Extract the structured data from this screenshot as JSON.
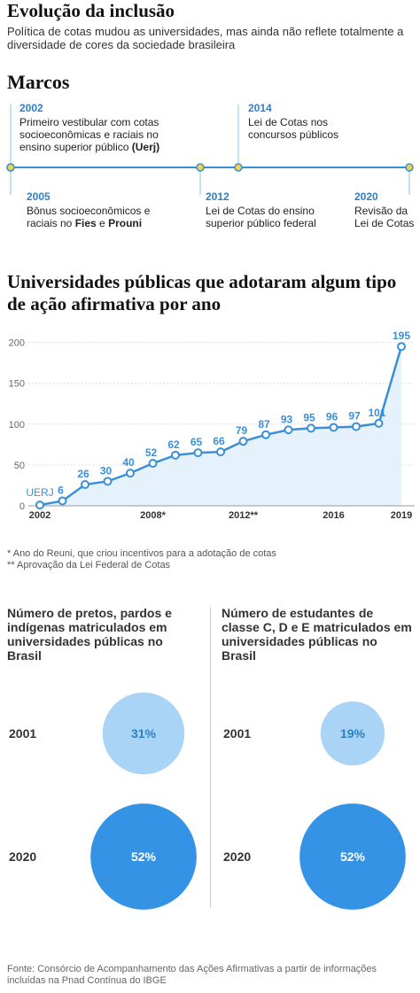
{
  "header": {
    "title": "Evolução da inclusão",
    "subtitle": "Política de cotas mudou  as universidades, mas ainda não reflete totalmente a diversidade de cores da sociedade brasileira"
  },
  "timeline": {
    "title": "Marcos",
    "events": [
      {
        "year": "2002",
        "position": "top",
        "parts": [
          {
            "text": "Primeiro vestibular com cotas socioeconômicas e raciais no ensino superior público ",
            "bold": false
          },
          {
            "text": "(Uerj)",
            "bold": true
          }
        ]
      },
      {
        "year": "2005",
        "position": "bottom",
        "parts": [
          {
            "text": "Bônus socioeconômicos e raciais no ",
            "bold": false
          },
          {
            "text": "Fies",
            "bold": true
          },
          {
            "text": " e ",
            "bold": false
          },
          {
            "text": "Prouni",
            "bold": true
          }
        ]
      },
      {
        "year": "2012",
        "position": "bottom",
        "parts": [
          {
            "text": "Lei de Cotas do ensino superior público federal",
            "bold": false
          }
        ]
      },
      {
        "year": "2014",
        "position": "top",
        "parts": [
          {
            "text": "Lei de Cotas nos concursos públicos",
            "bold": false
          }
        ]
      },
      {
        "year": "2020",
        "position": "bottom",
        "parts": [
          {
            "text": "Revisão da Lei de Cotas",
            "bold": false
          }
        ]
      }
    ]
  },
  "chart_data": {
    "type": "line",
    "title": "Universidades públicas que adotaram algum tipo de ação afirmativa por ano",
    "categories": [
      "2002",
      null,
      null,
      null,
      null,
      "2008*",
      null,
      null,
      null,
      "2012**",
      null,
      null,
      null,
      "2016",
      null,
      null,
      "2019"
    ],
    "values": [
      1,
      6,
      26,
      30,
      40,
      52,
      62,
      65,
      66,
      79,
      87,
      93,
      95,
      96,
      97,
      101,
      195
    ],
    "annotations": [
      {
        "text": "UERJ",
        "index": 0
      }
    ],
    "color": "#3a8fd6",
    "area_color": "#e6f2fb",
    "ylim": [
      0,
      205
    ],
    "yticks": [
      0,
      50,
      100,
      150,
      200
    ],
    "grid": true,
    "notes": [
      "* Ano do Reuni, que criou incentivos para a adotação de cotas",
      "** Aprovação da Lei Federal de Cotas"
    ]
  },
  "comparison": {
    "panels": [
      {
        "title": "Número de pretos, pardos e indígenas matriculados em universidades públicas no Brasil",
        "rows": [
          {
            "year": "2001",
            "value": 31,
            "label": "31%",
            "color": "#a9d4f5"
          },
          {
            "year": "2020",
            "value": 52,
            "label": "52%",
            "color": "#3593e6"
          }
        ]
      },
      {
        "title": "Número de estudantes de classe C, D e E  matriculados em universidades públicas no Brasil",
        "rows": [
          {
            "year": "2001",
            "value": 19,
            "label": "19%",
            "color": "#a9d4f5"
          },
          {
            "year": "2020",
            "value": 52,
            "label": "52%",
            "color": "#3593e6"
          }
        ]
      }
    ]
  },
  "source": "Fonte: Consórcio de Acompanhamento das Ações Afirmativas  a partir de informações incluídas na Pnad Contínua do IBGE"
}
